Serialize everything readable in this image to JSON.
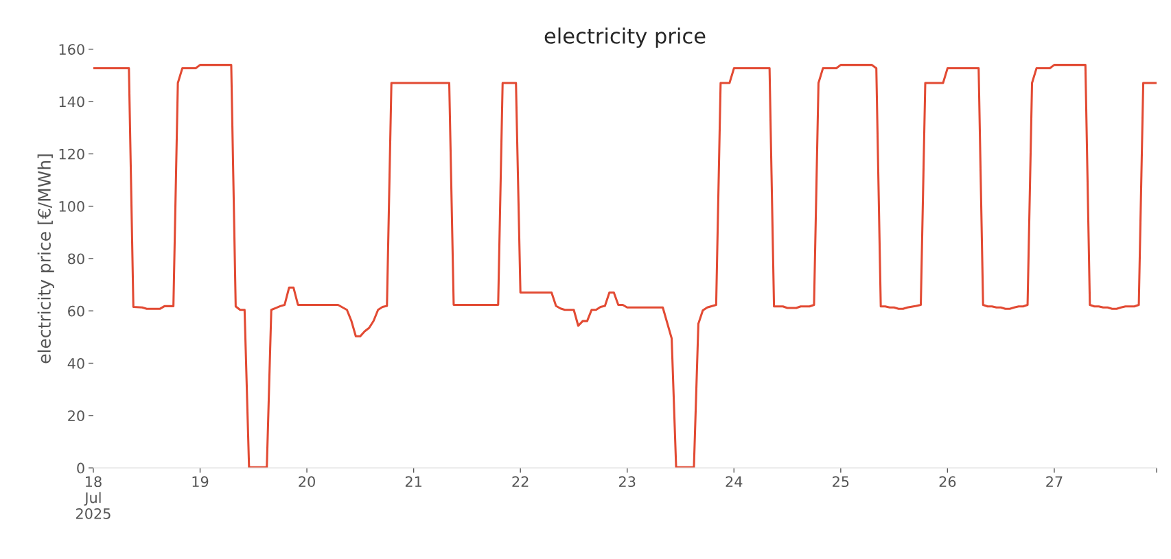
{
  "chart_data": {
    "type": "line",
    "title": "electricity price",
    "ylabel": "electricity price [€/MWh]",
    "x": [
      "2025-07-18T00:00",
      "2025-07-18T08:00",
      "2025-07-18T09:00",
      "2025-07-18T11:00",
      "2025-07-18T12:00",
      "2025-07-18T15:00",
      "2025-07-18T16:00",
      "2025-07-18T18:00",
      "2025-07-18T19:00",
      "2025-07-18T20:00",
      "2025-07-18T23:00",
      "2025-07-19T00:00",
      "2025-07-19T07:00",
      "2025-07-19T08:00",
      "2025-07-19T09:00",
      "2025-07-19T10:00",
      "2025-07-19T11:00",
      "2025-07-19T15:00",
      "2025-07-19T16:00",
      "2025-07-19T17:00",
      "2025-07-19T18:00",
      "2025-07-19T19:00",
      "2025-07-19T20:00",
      "2025-07-19T21:00",
      "2025-07-19T22:00",
      "2025-07-20T07:00",
      "2025-07-20T09:00",
      "2025-07-20T10:00",
      "2025-07-20T11:00",
      "2025-07-20T12:00",
      "2025-07-20T13:00",
      "2025-07-20T14:00",
      "2025-07-20T15:00",
      "2025-07-20T16:00",
      "2025-07-20T17:00",
      "2025-07-20T18:00",
      "2025-07-20T19:00",
      "2025-07-21T08:00",
      "2025-07-21T09:00",
      "2025-07-21T19:00",
      "2025-07-21T20:00",
      "2025-07-21T23:00",
      "2025-07-22T00:00",
      "2025-07-22T07:00",
      "2025-07-22T08:00",
      "2025-07-22T09:00",
      "2025-07-22T10:00",
      "2025-07-22T12:00",
      "2025-07-22T13:00",
      "2025-07-22T14:00",
      "2025-07-22T15:00",
      "2025-07-22T16:00",
      "2025-07-22T17:00",
      "2025-07-22T18:00",
      "2025-07-22T19:00",
      "2025-07-22T20:00",
      "2025-07-22T21:00",
      "2025-07-22T22:00",
      "2025-07-22T23:00",
      "2025-07-23T00:00",
      "2025-07-23T08:00",
      "2025-07-23T10:00",
      "2025-07-23T11:00",
      "2025-07-23T15:00",
      "2025-07-23T16:00",
      "2025-07-23T17:00",
      "2025-07-23T18:00",
      "2025-07-23T20:00",
      "2025-07-23T21:00",
      "2025-07-23T23:00",
      "2025-07-24T00:00",
      "2025-07-24T08:00",
      "2025-07-24T09:00",
      "2025-07-24T11:00",
      "2025-07-24T12:00",
      "2025-07-24T14:00",
      "2025-07-24T15:00",
      "2025-07-24T17:00",
      "2025-07-24T18:00",
      "2025-07-24T19:00",
      "2025-07-24T20:00",
      "2025-07-24T23:00",
      "2025-07-25T00:00",
      "2025-07-25T07:00",
      "2025-07-25T08:00",
      "2025-07-25T09:00",
      "2025-07-25T10:00",
      "2025-07-25T11:00",
      "2025-07-25T12:00",
      "2025-07-25T13:00",
      "2025-07-25T14:00",
      "2025-07-25T15:00",
      "2025-07-25T17:00",
      "2025-07-25T18:00",
      "2025-07-25T19:00",
      "2025-07-25T23:00",
      "2025-07-26T00:00",
      "2025-07-26T07:00",
      "2025-07-26T08:00",
      "2025-07-26T09:00",
      "2025-07-26T10:00",
      "2025-07-26T11:00",
      "2025-07-26T12:00",
      "2025-07-26T13:00",
      "2025-07-26T14:00",
      "2025-07-26T15:00",
      "2025-07-26T16:00",
      "2025-07-26T17:00",
      "2025-07-26T18:00",
      "2025-07-26T19:00",
      "2025-07-26T20:00",
      "2025-07-26T23:00",
      "2025-07-27T00:00",
      "2025-07-27T07:00",
      "2025-07-27T08:00",
      "2025-07-27T09:00",
      "2025-07-27T10:00",
      "2025-07-27T11:00",
      "2025-07-27T12:00",
      "2025-07-27T13:00",
      "2025-07-27T14:00",
      "2025-07-27T15:00",
      "2025-07-27T16:00",
      "2025-07-27T18:00",
      "2025-07-27T19:00",
      "2025-07-27T20:00",
      "2025-07-27T23:00"
    ],
    "series": [
      {
        "color": "#e24a33",
        "values": [
          152.7,
          152.7,
          61.5,
          61.3,
          60.8,
          60.8,
          61.8,
          61.8,
          147.1,
          152.7,
          152.7,
          154.0,
          154.0,
          61.7,
          60.4,
          60.4,
          0.2,
          0.2,
          60.4,
          61.1,
          61.8,
          62.3,
          68.9,
          68.9,
          62.3,
          62.3,
          60.4,
          56.2,
          50.3,
          50.3,
          52.2,
          53.5,
          56.2,
          60.4,
          61.5,
          61.9,
          147.1,
          147.1,
          62.3,
          62.3,
          147.1,
          147.1,
          67.0,
          67.0,
          61.9,
          60.9,
          60.4,
          60.4,
          54.3,
          56.1,
          56.1,
          60.4,
          60.4,
          61.5,
          61.9,
          67.0,
          67.0,
          62.3,
          62.3,
          61.3,
          61.3,
          49.5,
          0.2,
          0.2,
          55.1,
          60.2,
          61.3,
          62.3,
          147.1,
          147.1,
          152.7,
          152.7,
          61.7,
          61.7,
          61.1,
          61.1,
          61.7,
          61.7,
          62.3,
          147.1,
          152.7,
          152.7,
          154.0,
          154.0,
          152.7,
          61.7,
          61.7,
          61.3,
          61.3,
          60.8,
          60.8,
          61.3,
          61.9,
          62.3,
          147.1,
          147.1,
          152.7,
          152.7,
          62.3,
          61.7,
          61.7,
          61.3,
          61.3,
          60.8,
          60.8,
          61.3,
          61.7,
          61.7,
          62.3,
          147.1,
          152.7,
          152.7,
          154.0,
          154.0,
          62.3,
          61.7,
          61.7,
          61.3,
          61.3,
          60.8,
          60.8,
          61.3,
          61.7,
          61.7,
          62.3,
          147.1,
          147.1
        ]
      }
    ],
    "xlim": [
      "2025-07-18T00:00",
      "2025-07-27T23:00"
    ],
    "xticks": [
      {
        "value": "2025-07-18",
        "label": "18\nJul\n2025"
      },
      {
        "value": "2025-07-19",
        "label": "19"
      },
      {
        "value": "2025-07-20",
        "label": "20"
      },
      {
        "value": "2025-07-21",
        "label": "21"
      },
      {
        "value": "2025-07-22",
        "label": "22"
      },
      {
        "value": "2025-07-23",
        "label": "23"
      },
      {
        "value": "2025-07-24",
        "label": "24"
      },
      {
        "value": "2025-07-25",
        "label": "25"
      },
      {
        "value": "2025-07-26",
        "label": "26"
      },
      {
        "value": "2025-07-27",
        "label": "27"
      },
      {
        "value": "2025-07-27T23:00",
        "label": null
      }
    ],
    "ylim": [
      0,
      160
    ],
    "yticks": [
      0,
      20,
      40,
      60,
      80,
      100,
      120,
      140,
      160
    ],
    "grid": false,
    "line_style": "solid",
    "marker": "none"
  }
}
